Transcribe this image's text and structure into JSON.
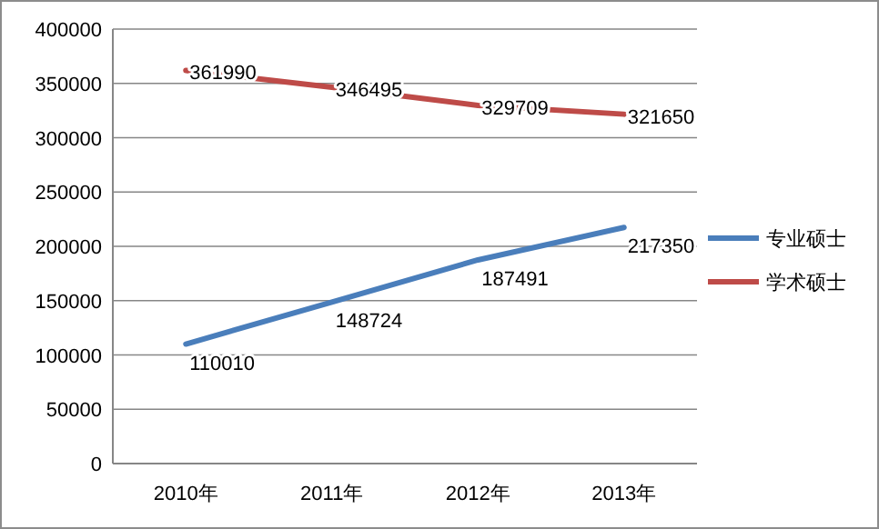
{
  "chart_data": {
    "type": "line",
    "categories": [
      "2010年",
      "2011年",
      "2012年",
      "2013年"
    ],
    "series": [
      {
        "name": "专业硕士",
        "color": "#4a7ebb",
        "values": [
          110010,
          148724,
          187491,
          217350
        ]
      },
      {
        "name": "学术硕士",
        "color": "#be4b48",
        "values": [
          361990,
          346495,
          329709,
          321650
        ]
      }
    ],
    "ylim": [
      0,
      400000
    ],
    "yticks": [
      0,
      50000,
      100000,
      150000,
      200000,
      250000,
      300000,
      350000,
      400000
    ],
    "grid": "y",
    "legend": "right",
    "data_labels": true,
    "marker": "none",
    "line_style": "solid"
  }
}
